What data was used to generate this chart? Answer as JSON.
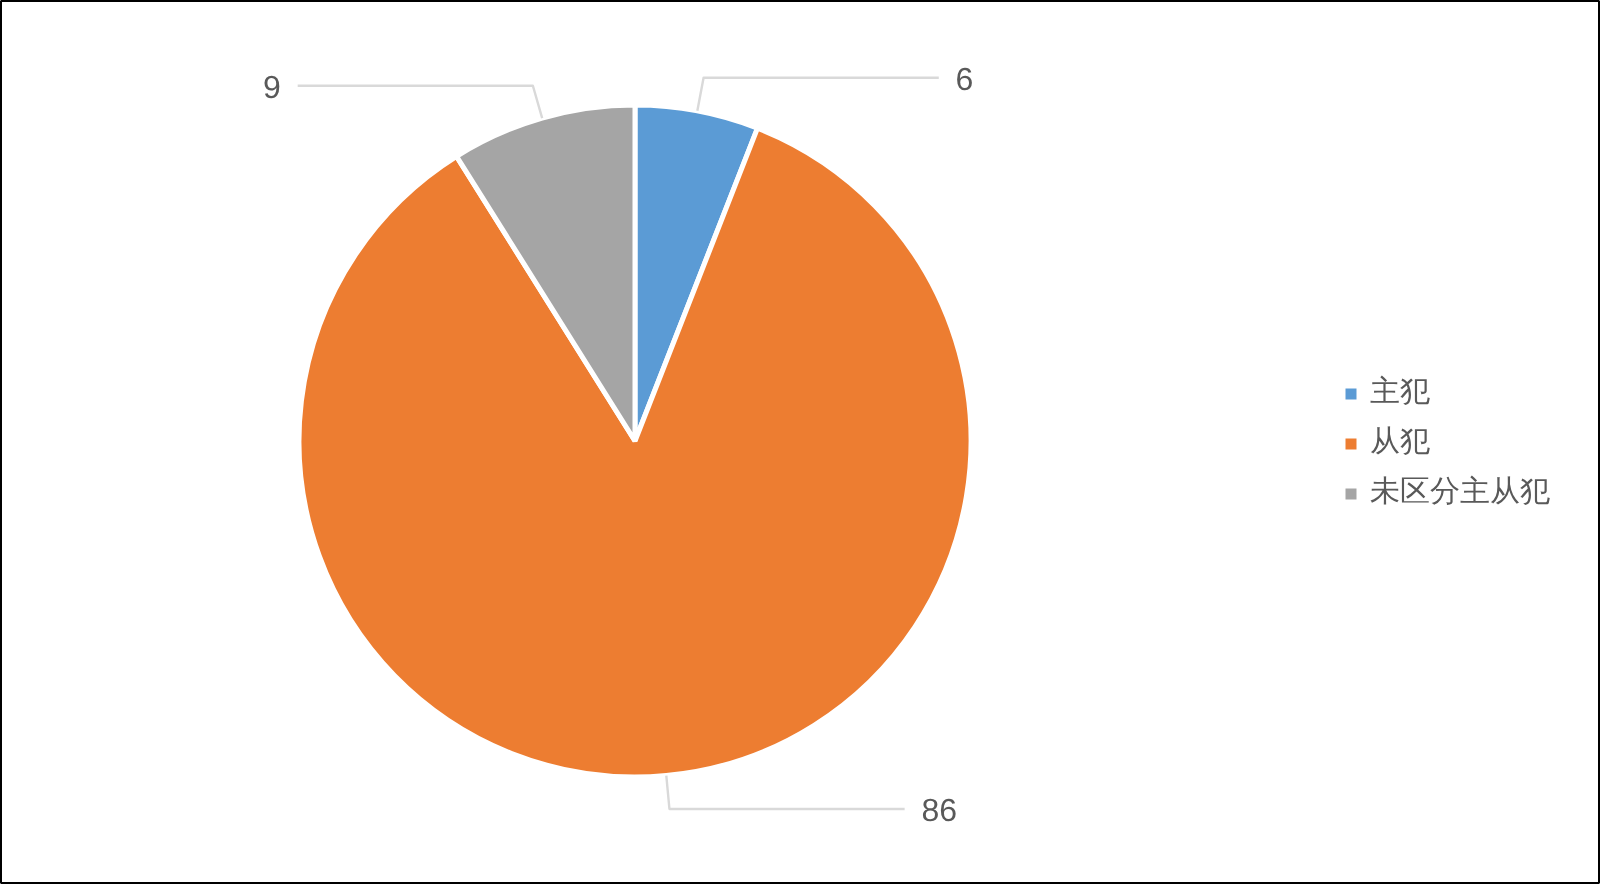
{
  "chart_data": {
    "type": "pie",
    "categories": [
      "主犯",
      "从犯",
      "未区分主从犯"
    ],
    "values": [
      6,
      86,
      9
    ],
    "colors": [
      "#5b9bd5",
      "#ed7d31",
      "#a5a5a5"
    ],
    "data_labels": true,
    "legend": "right"
  }
}
